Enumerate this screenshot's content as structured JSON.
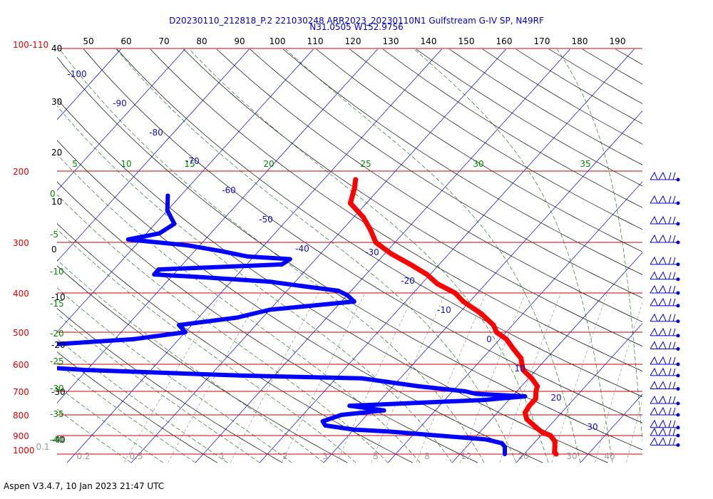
{
  "header": {
    "title_line1": "D20230110_212818_P.2 221030248 ARR2023_20230110N1 Gulfstream G-IV SP, N49RF",
    "title_line2": "N31.0505 W152.9756"
  },
  "footer": {
    "version": "Aspen V3.4.7, 10 Jan 2023  21:47 UTC"
  },
  "colors": {
    "temperature": "#ff0000",
    "dewpoint": "#0000ff",
    "isobar": "#cc0000",
    "isotherm": "#0000cc",
    "dry_adiabat": "#000000",
    "moist_adiabat": "#006600",
    "mixing_ratio": "#888888"
  },
  "chart_data": {
    "type": "scatter",
    "title": "D20230110_212818_P.2 221030248 ARR2023_20230110N1 Gulfstream G-IV SP, N49RF",
    "subtitle": "N31.0505 W152.9756",
    "pressure_top_label": "100-110",
    "pressure_levels": [
      200,
      300,
      400,
      500,
      600,
      700,
      800,
      900,
      1000
    ],
    "pressure_labels": [
      "200",
      "300",
      "400",
      "500",
      "600",
      "700",
      "800",
      "900",
      "1000"
    ],
    "top_axis_labels": [
      "50",
      "60",
      "70",
      "80",
      "90",
      "100",
      "110",
      "120",
      "130",
      "140",
      "150",
      "160",
      "170",
      "180",
      "190"
    ],
    "left_axis_labels": [
      "40",
      "30",
      "20",
      "10",
      "0",
      "-10",
      "-20",
      "-30",
      "-40"
    ],
    "left_green_labels": [
      "0",
      "-5",
      "-10",
      "-15",
      "-20",
      "-25",
      "-30",
      "-35",
      "-40"
    ],
    "top_green_labels": [
      "5",
      "10",
      "15",
      "20",
      "25",
      "30",
      "35"
    ],
    "isotherm_labels": [
      "-100",
      "-90",
      "-80",
      "-70",
      "-60",
      "-50",
      "-40",
      "-30",
      "-20",
      "-10",
      "0",
      "10",
      "20",
      "30"
    ],
    "mixing_ratio_labels": [
      "0.1",
      "0.2",
      "0.5",
      "1",
      "2",
      "3",
      "5",
      "8",
      "12",
      "20",
      "30",
      "40"
    ],
    "temperature_profile": [
      [
        210,
        -45.0
      ],
      [
        220,
        -44.0
      ],
      [
        240,
        -42.5
      ],
      [
        260,
        -38.5
      ],
      [
        280,
        -35.5
      ],
      [
        300,
        -33.0
      ],
      [
        320,
        -29.0
      ],
      [
        340,
        -24.5
      ],
      [
        360,
        -20.5
      ],
      [
        380,
        -17.5
      ],
      [
        400,
        -13.5
      ],
      [
        420,
        -11.0
      ],
      [
        450,
        -6.5
      ],
      [
        480,
        -3.0
      ],
      [
        500,
        -1.5
      ],
      [
        520,
        1.0
      ],
      [
        550,
        3.5
      ],
      [
        580,
        6.0
      ],
      [
        600,
        7.0
      ],
      [
        620,
        8.0
      ],
      [
        650,
        10.5
      ],
      [
        680,
        12.5
      ],
      [
        700,
        13.0
      ],
      [
        730,
        14.0
      ],
      [
        760,
        14.0
      ],
      [
        790,
        14.3
      ],
      [
        820,
        15.5
      ],
      [
        850,
        17.5
      ],
      [
        880,
        19.5
      ],
      [
        900,
        21.5
      ],
      [
        930,
        23.0
      ],
      [
        960,
        23.8
      ],
      [
        990,
        24.5
      ],
      [
        1000,
        25.0
      ]
    ],
    "dewpoint_profile": [
      [
        230,
        -72.0
      ],
      [
        250,
        -70.0
      ],
      [
        270,
        -67.0
      ],
      [
        285,
        -68.0
      ],
      [
        295,
        -72.0
      ],
      [
        305,
        -62.0
      ],
      [
        315,
        -56.0
      ],
      [
        325,
        -51.0
      ],
      [
        330,
        -44.0
      ],
      [
        340,
        -44.5
      ],
      [
        350,
        -63.0
      ],
      [
        360,
        -63.0
      ],
      [
        365,
        -56.0
      ],
      [
        375,
        -44.0
      ],
      [
        385,
        -38.0
      ],
      [
        395,
        -32.0
      ],
      [
        405,
        -30.0
      ],
      [
        420,
        -28.0
      ],
      [
        440,
        -40.0
      ],
      [
        460,
        -44.0
      ],
      [
        480,
        -52.0
      ],
      [
        500,
        -50.0
      ],
      [
        520,
        -57.0
      ],
      [
        540,
        -72.0
      ],
      [
        560,
        -74.0
      ],
      [
        580,
        -78.0
      ],
      [
        600,
        -75.0
      ],
      [
        620,
        -60.0
      ],
      [
        640,
        -35.0
      ],
      [
        650,
        -16.0
      ],
      [
        680,
        -6.0
      ],
      [
        700,
        2.0
      ],
      [
        710,
        4.0
      ],
      [
        720,
        12.0
      ],
      [
        735,
        6.0
      ],
      [
        750,
        -6.0
      ],
      [
        760,
        -14.0
      ],
      [
        780,
        -8.0
      ],
      [
        800,
        -14.0
      ],
      [
        830,
        -16.0
      ],
      [
        850,
        -15.0
      ],
      [
        870,
        -10.0
      ],
      [
        880,
        -4.0
      ],
      [
        900,
        4.0
      ],
      [
        920,
        12.0
      ],
      [
        940,
        15.0
      ],
      [
        960,
        16.0
      ],
      [
        980,
        16.5
      ],
      [
        1000,
        17.0
      ]
    ],
    "wind_barb_levels": [
      210,
      240,
      270,
      300,
      340,
      370,
      400,
      430,
      470,
      510,
      550,
      600,
      640,
      690,
      750,
      800,
      860,
      900,
      950
    ],
    "xlabel": "",
    "ylabel": "",
    "grid": true,
    "legend": "none"
  }
}
